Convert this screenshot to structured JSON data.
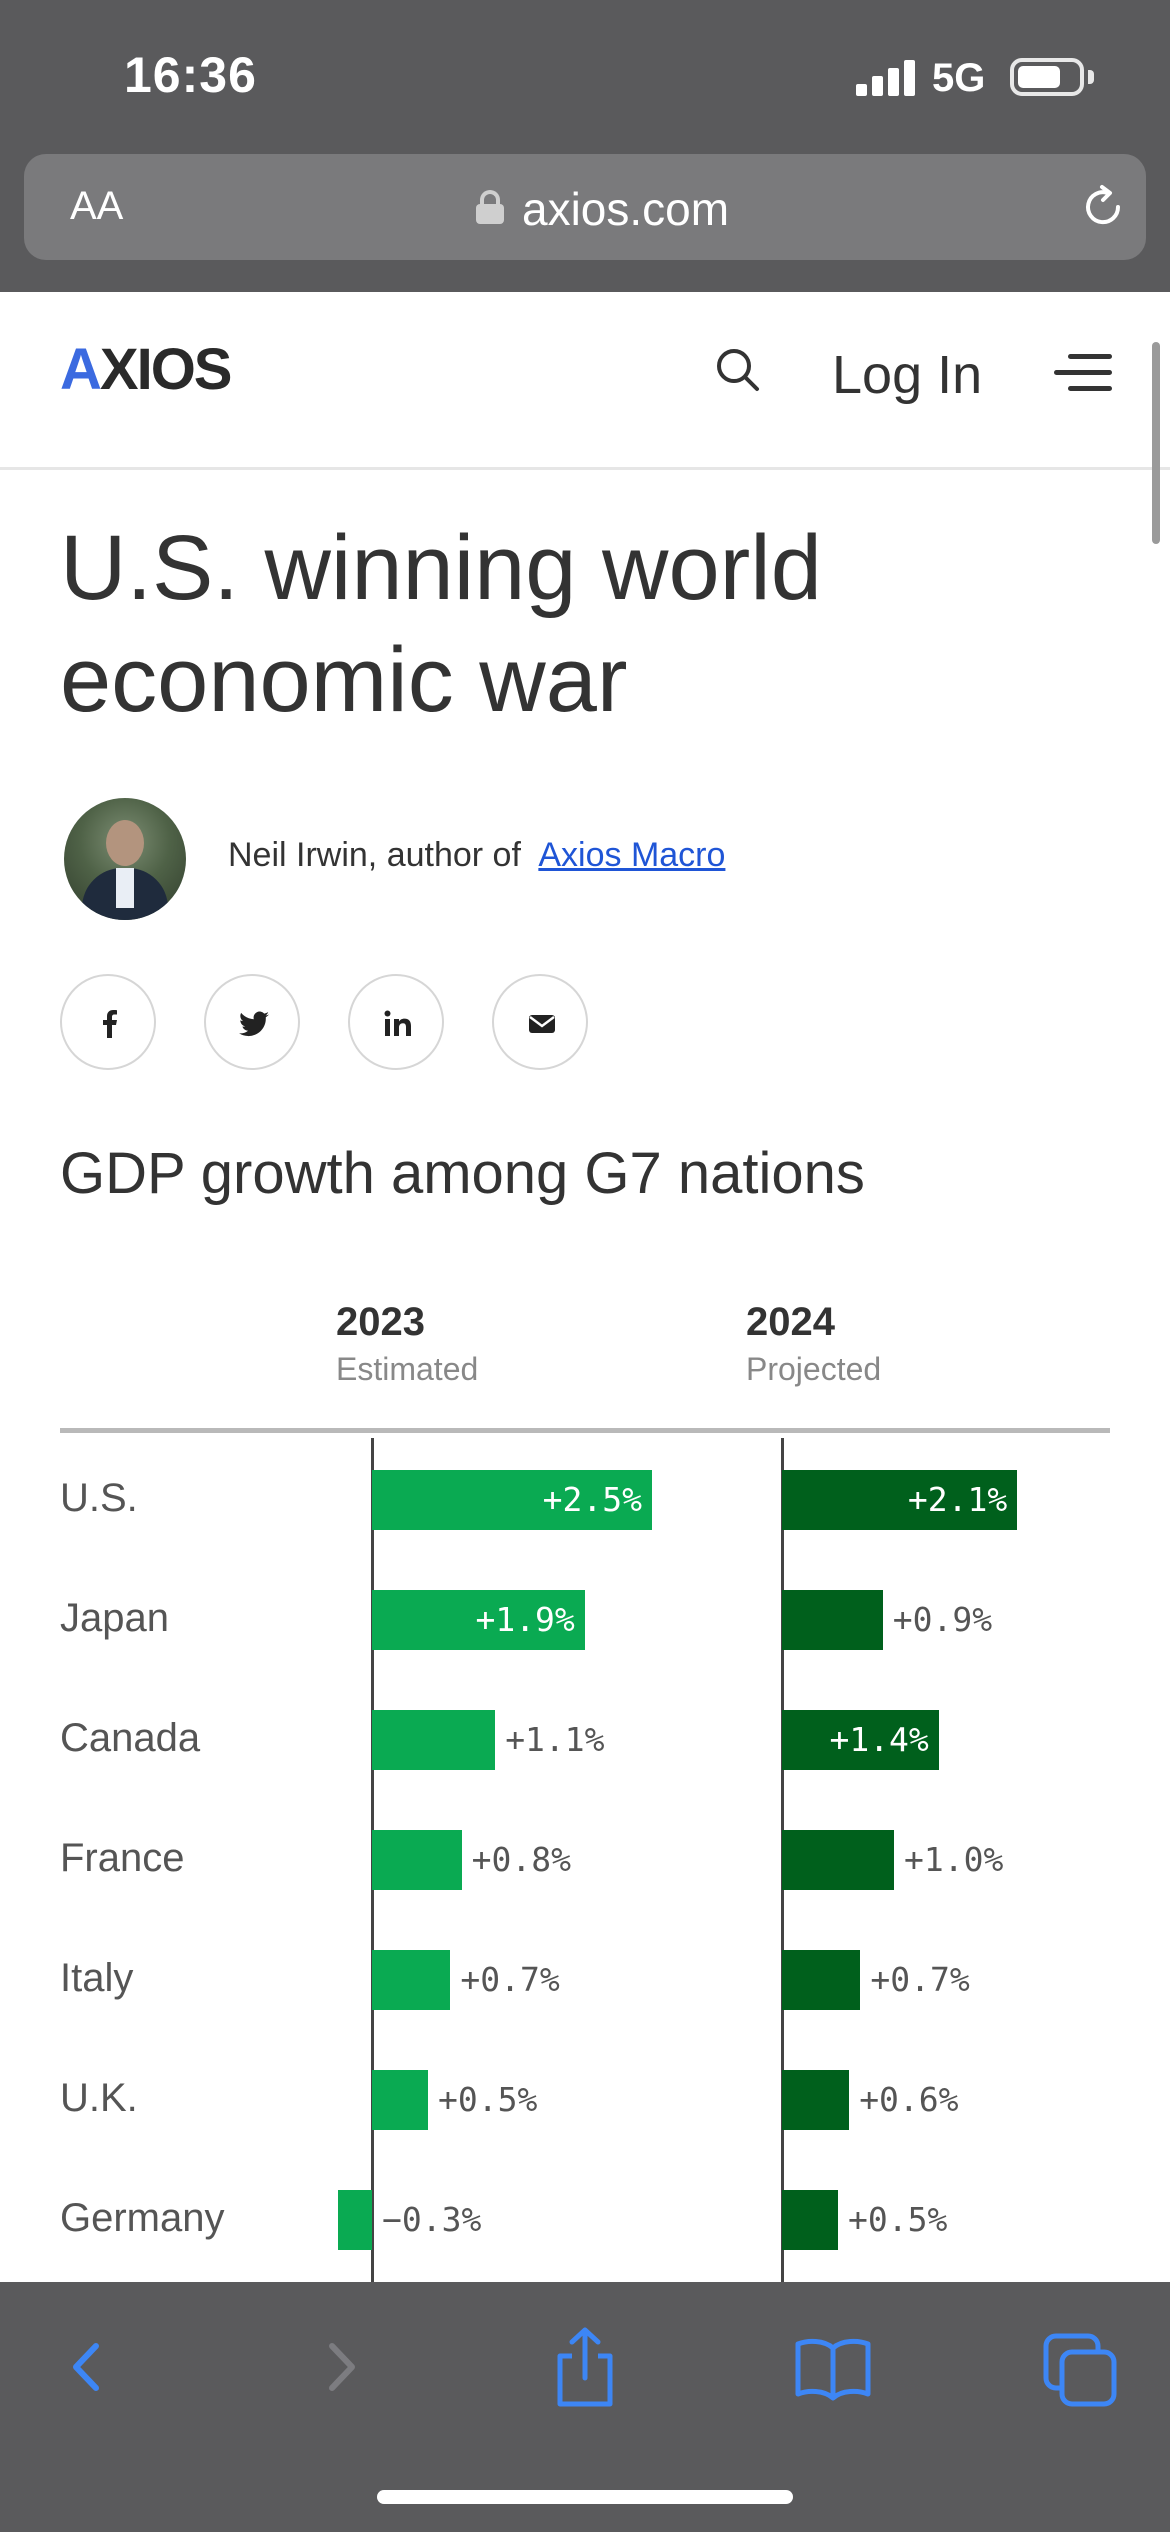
{
  "status": {
    "time": "16:36",
    "network": "5G"
  },
  "browser": {
    "text_size_label": "AA",
    "url": "axios.com"
  },
  "site": {
    "logo": "AXIOS",
    "login_label": "Log In"
  },
  "article": {
    "headline": "U.S. winning world economic war",
    "byline_prefix": "Neil Irwin, author of",
    "byline_link": "Axios Macro",
    "share_icons": [
      "facebook-icon",
      "twitter-icon",
      "linkedin-icon",
      "email-icon"
    ]
  },
  "colors": {
    "bar_2023": "#0aaa52",
    "bar_2024": "#00601c",
    "logo_accent": "#3b6ae0",
    "link": "#1f55d6"
  },
  "chart_data": {
    "type": "bar",
    "title": "GDP growth among G7 nations",
    "categories": [
      "U.S.",
      "Japan",
      "Canada",
      "France",
      "Italy",
      "U.K.",
      "Germany"
    ],
    "series": [
      {
        "name": "2023",
        "subtitle": "Estimated",
        "values": [
          2.5,
          1.9,
          1.1,
          0.8,
          0.7,
          0.5,
          -0.3
        ],
        "labels": [
          "+2.5%",
          "+1.9%",
          "+1.1%",
          "+0.8%",
          "+0.7%",
          "+0.5%",
          "−0.3%"
        ]
      },
      {
        "name": "2024",
        "subtitle": "Projected",
        "values": [
          2.1,
          0.9,
          1.4,
          1.0,
          0.7,
          0.6,
          0.5
        ],
        "labels": [
          "+2.1%",
          "+0.9%",
          "+1.4%",
          "+1.0%",
          "+0.7%",
          "+0.6%",
          "+0.5%"
        ]
      }
    ],
    "units": "%"
  }
}
